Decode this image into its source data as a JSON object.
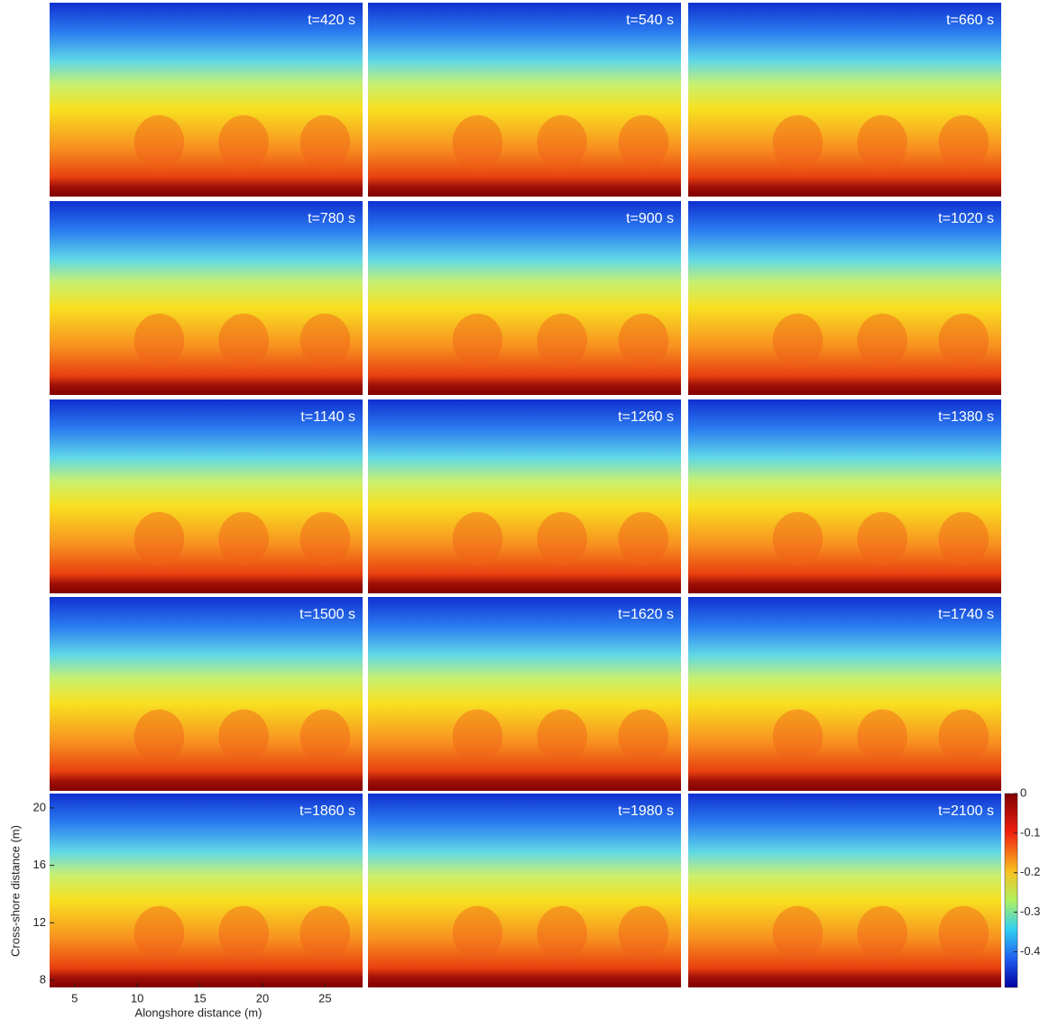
{
  "chart_data": {
    "type": "heatmap",
    "panels": [
      "t=420 s",
      "t=540 s",
      "t=660 s",
      "t=780 s",
      "t=900 s",
      "t=1020 s",
      "t=1140 s",
      "t=1260 s",
      "t=1380 s",
      "t=1500 s",
      "t=1620 s",
      "t=1740 s",
      "t=1860 s",
      "t=1980 s",
      "t=2100 s"
    ],
    "xlabel": "Alongshore distance (m)",
    "ylabel": "Cross-shore distance (m)",
    "xlim": [
      3,
      28
    ],
    "xticks": [
      5,
      10,
      15,
      20,
      25
    ],
    "ylim": [
      7.5,
      21
    ],
    "yticks": [
      8,
      12,
      16,
      20
    ],
    "colorbar": {
      "lim": [
        -0.49,
        0
      ],
      "ticks": [
        0,
        -0.1,
        -0.2,
        -0.3,
        -0.4
      ]
    }
  }
}
